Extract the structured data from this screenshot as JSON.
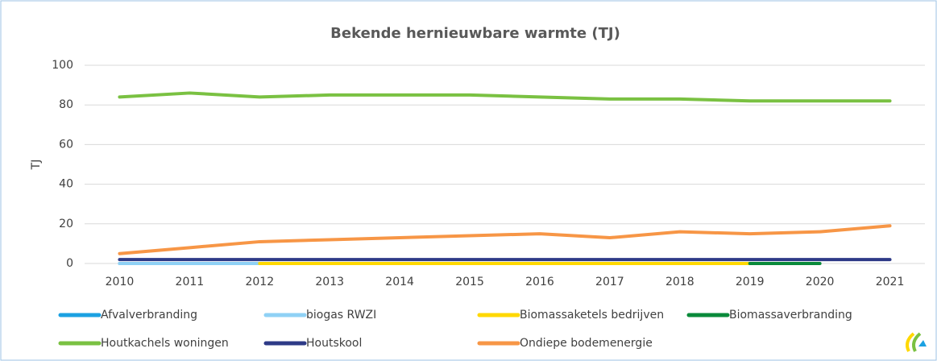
{
  "chart_data": {
    "type": "line",
    "title": "Bekende hernieuwbare warmte (TJ)",
    "y_label": "TJ",
    "categories": [
      "2010",
      "2011",
      "2012",
      "2013",
      "2014",
      "2015",
      "2016",
      "2017",
      "2018",
      "2019",
      "2020",
      "2021"
    ],
    "series": [
      {
        "name": "Afvalverbranding",
        "color": "#1ba1e2",
        "values": [
          0,
          0,
          0,
          null,
          null,
          null,
          null,
          null,
          null,
          null,
          null,
          null
        ]
      },
      {
        "name": "biogas RWZI",
        "color": "#8fd1f5",
        "values": [
          0,
          0,
          0,
          null,
          null,
          null,
          null,
          null,
          null,
          null,
          null,
          null
        ]
      },
      {
        "name": "Biomassaketels bedrijven",
        "color": "#ffd800",
        "values": [
          null,
          null,
          0,
          0,
          0,
          0,
          0,
          0,
          0,
          0,
          null,
          null
        ]
      },
      {
        "name": "Biomassaverbranding",
        "color": "#0a8a3a",
        "values": [
          null,
          null,
          null,
          null,
          null,
          null,
          null,
          null,
          null,
          0,
          0,
          null
        ]
      },
      {
        "name": "Houtkachels woningen",
        "color": "#7ac142",
        "values": [
          84,
          86,
          84,
          85,
          85,
          85,
          84,
          83,
          83,
          82,
          82,
          82
        ]
      },
      {
        "name": "Houtskool",
        "color": "#2e3a87",
        "values": [
          2,
          2,
          2,
          2,
          2,
          2,
          2,
          2,
          2,
          2,
          2,
          2
        ]
      },
      {
        "name": "Ondiepe bodemenergie",
        "color": "#f79646",
        "values": [
          5,
          8,
          11,
          12,
          13,
          14,
          15,
          13,
          16,
          15,
          16,
          19
        ]
      }
    ],
    "ylim": [
      0,
      100
    ],
    "yticks": [
      0,
      20,
      40,
      60,
      80,
      100
    ],
    "grid": true
  }
}
